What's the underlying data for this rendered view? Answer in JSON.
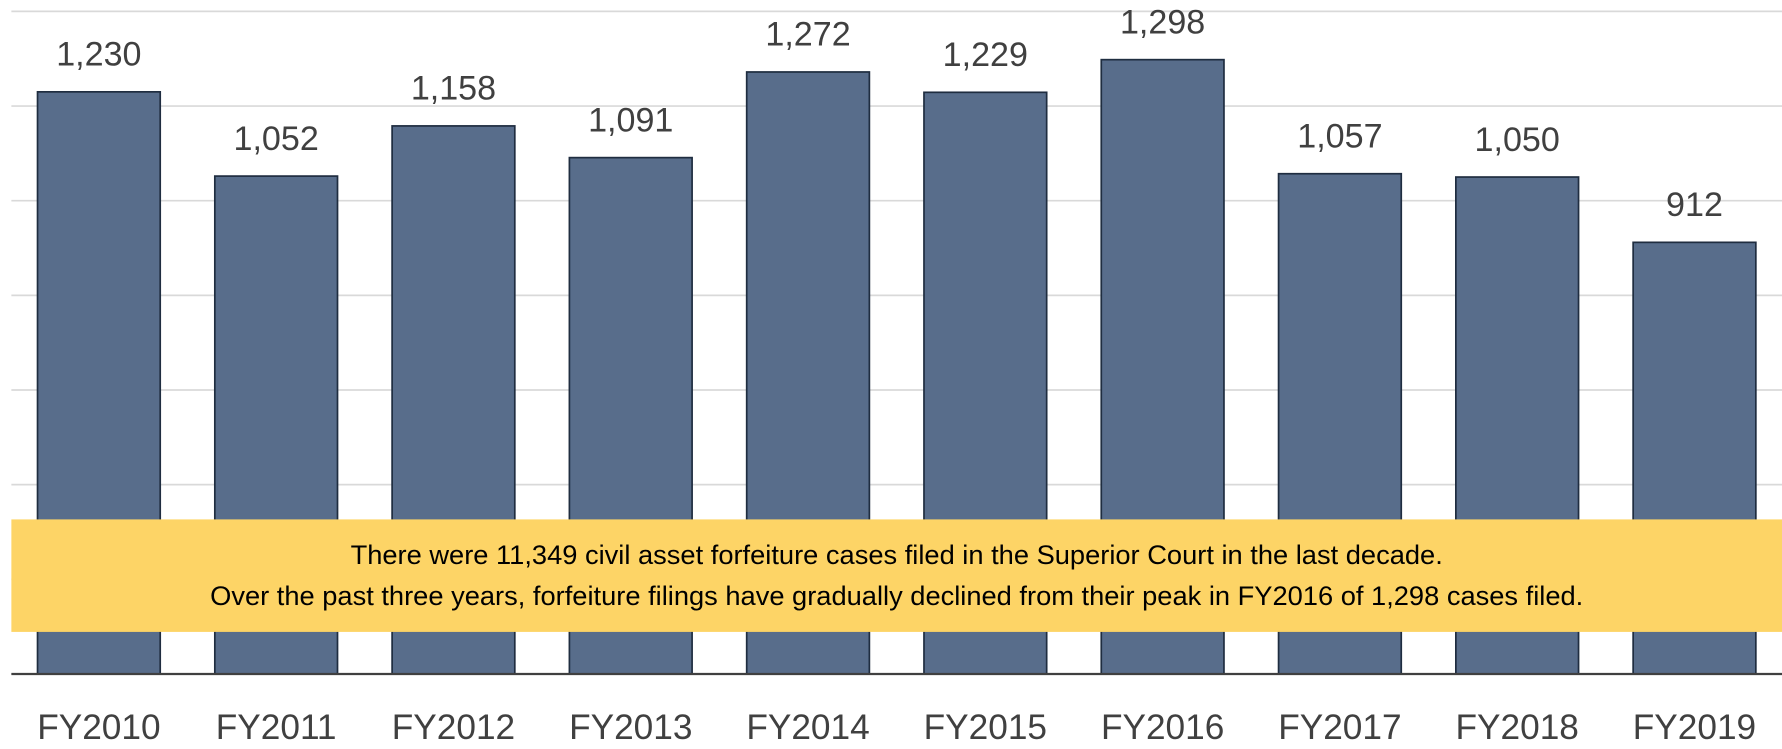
{
  "chart_data": {
    "type": "bar",
    "categories": [
      "FY2010",
      "FY2011",
      "FY2012",
      "FY2013",
      "FY2014",
      "FY2015",
      "FY2016",
      "FY2017",
      "FY2018",
      "FY2019"
    ],
    "values": [
      1230,
      1052,
      1158,
      1091,
      1272,
      1229,
      1298,
      1057,
      1050,
      912
    ],
    "value_labels": [
      "1,230",
      "1,052",
      "1,158",
      "1,091",
      "1,272",
      "1,229",
      "1,298",
      "1,057",
      "1,050",
      "912"
    ],
    "color": "#586d8b",
    "ylim": [
      0,
      1400
    ],
    "yticks": [
      0,
      200,
      400,
      600,
      800,
      1000,
      1200,
      1400
    ],
    "grid": true,
    "annotations": [
      "There were 11,349 civil asset forfeiture cases filed in the Superior Court in the last decade.",
      "Over the past three years, forfeiture filings have gradually declined from their peak in FY2016 of 1,298 cases filed."
    ]
  }
}
